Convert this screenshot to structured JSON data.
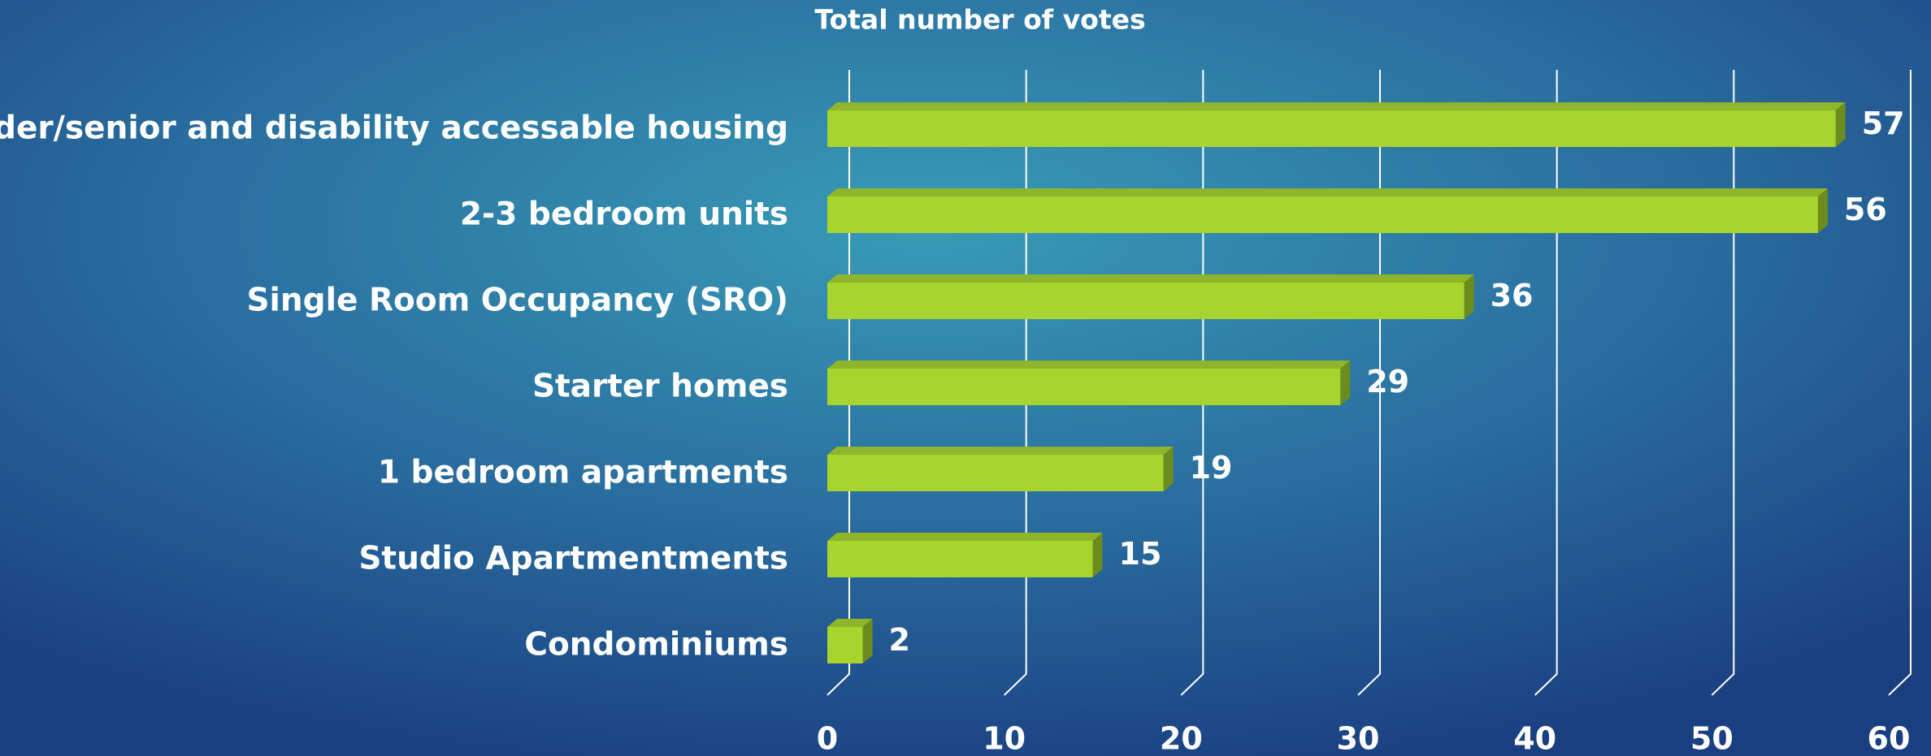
{
  "chart_data": {
    "type": "bar3d",
    "title": "Total number of votes",
    "categories": [
      "Elder/senior and disability accessable housing",
      "2-3 bedroom units",
      "Single Room Occupancy (SRO)",
      "Starter homes",
      "1 bedroom apartments",
      "Studio Apartmentments",
      "Condominiums"
    ],
    "values": [
      57,
      56,
      36,
      29,
      19,
      15,
      2
    ],
    "color": "#a8d42e",
    "xlim": [
      0,
      60
    ],
    "xticks": [
      0,
      10,
      20,
      30,
      40,
      50,
      60
    ],
    "grid": true
  }
}
